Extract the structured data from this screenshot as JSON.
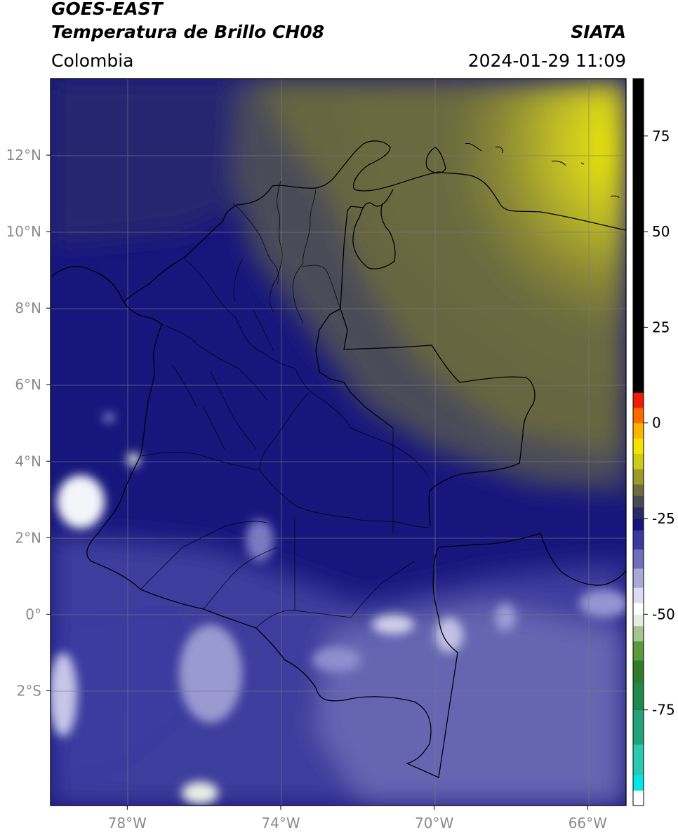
{
  "header": {
    "satellite": "GOES-EAST",
    "product": "Temperatura de Brillo CH08",
    "region": "Colombia",
    "agency": "SIATA",
    "datetime": "2024-01-29 11:09"
  },
  "map": {
    "lon_range": [
      -80,
      -65
    ],
    "lat_range": [
      -5,
      14
    ],
    "lat_ticks": [
      {
        "value": 12,
        "label": "12°N"
      },
      {
        "value": 10,
        "label": "10°N"
      },
      {
        "value": 8,
        "label": "8°N"
      },
      {
        "value": 6,
        "label": "6°N"
      },
      {
        "value": 4,
        "label": "4°N"
      },
      {
        "value": 2,
        "label": "2°N"
      },
      {
        "value": 0,
        "label": "0°"
      },
      {
        "value": -2,
        "label": "2°S"
      }
    ],
    "lon_ticks": [
      {
        "value": -78,
        "label": "78°W"
      },
      {
        "value": -74,
        "label": "74°W"
      },
      {
        "value": -70,
        "label": "70°W"
      },
      {
        "value": -66,
        "label": "66°W"
      }
    ],
    "grid": true
  },
  "colorbar": {
    "range": [
      -100,
      90
    ],
    "ticks": [
      {
        "value": 75,
        "label": "75"
      },
      {
        "value": 50,
        "label": "50"
      },
      {
        "value": 25,
        "label": "25"
      },
      {
        "value": 0,
        "label": "0"
      },
      {
        "value": -25,
        "label": "-25"
      },
      {
        "value": -50,
        "label": "-50"
      },
      {
        "value": -75,
        "label": "-75"
      }
    ],
    "segments": [
      {
        "from": -100,
        "to": -96,
        "color": "#ffffff"
      },
      {
        "from": -96,
        "to": -92,
        "color": "#00e5e5"
      },
      {
        "from": -92,
        "to": -84,
        "color": "#2bc8b2"
      },
      {
        "from": -84,
        "to": -75,
        "color": "#23a27a"
      },
      {
        "from": -75,
        "to": -68,
        "color": "#1d8a4a"
      },
      {
        "from": -68,
        "to": -62,
        "color": "#2f7d2a"
      },
      {
        "from": -62,
        "to": -57,
        "color": "#5b9a3c"
      },
      {
        "from": -57,
        "to": -53,
        "color": "#a6c492"
      },
      {
        "from": -53,
        "to": -50,
        "color": "#e4eedf"
      },
      {
        "from": -50,
        "to": -47,
        "color": "#ffffff"
      },
      {
        "from": -47,
        "to": -43,
        "color": "#dcdcef"
      },
      {
        "from": -43,
        "to": -38,
        "color": "#a9a9d6"
      },
      {
        "from": -38,
        "to": -33,
        "color": "#6f6fb9"
      },
      {
        "from": -33,
        "to": -28,
        "color": "#3b3b9e"
      },
      {
        "from": -28,
        "to": -25,
        "color": "#15157f"
      },
      {
        "from": -25,
        "to": -22,
        "color": "#2a2a66"
      },
      {
        "from": -22,
        "to": -19,
        "color": "#4a4a52"
      },
      {
        "from": -19,
        "to": -16,
        "color": "#6b6b3e"
      },
      {
        "from": -16,
        "to": -12,
        "color": "#9a9a2c"
      },
      {
        "from": -12,
        "to": -8,
        "color": "#cccc18"
      },
      {
        "from": -8,
        "to": -4,
        "color": "#f2e400"
      },
      {
        "from": -4,
        "to": 0,
        "color": "#ffb300"
      },
      {
        "from": 0,
        "to": 4,
        "color": "#ff6a00"
      },
      {
        "from": 4,
        "to": 8,
        "color": "#ee1c00"
      },
      {
        "from": 8,
        "to": 90,
        "color": "#000000"
      }
    ]
  }
}
